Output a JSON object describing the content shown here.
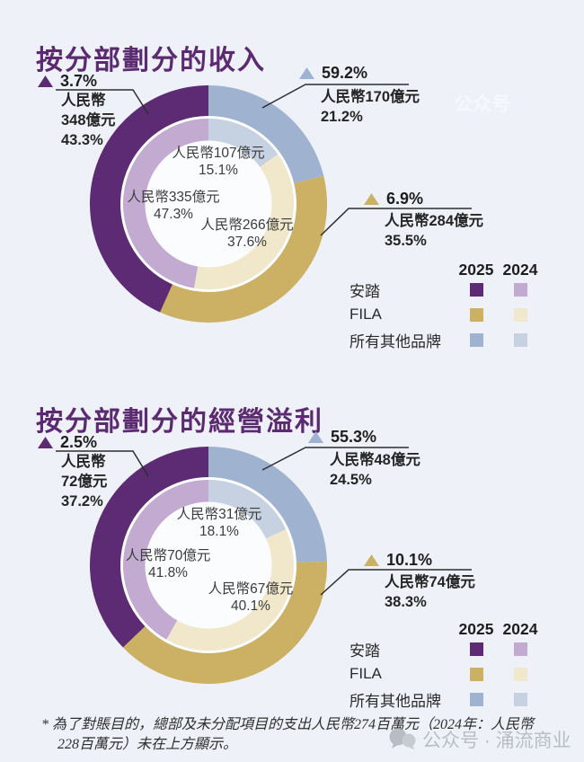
{
  "colors": {
    "anta_2025": "#5d2b74",
    "anta_2024": "#c3aad0",
    "fila_2025": "#ccb164",
    "fila_2024": "#f1e8cc",
    "other_2025": "#9fb2cf",
    "other_2024": "#c6d1e1",
    "title": "#5b2a70",
    "background": "#eef1f8"
  },
  "chart_data": [
    {
      "type": "pie",
      "subtype": "double-ring-donut",
      "title": "按分部劃分的收入",
      "unit": "人民幣億元",
      "categories": [
        "所有其他品牌",
        "FILA",
        "安踏"
      ],
      "series": [
        {
          "name": "2025",
          "ring": "outer",
          "values": [
            170,
            284,
            348
          ],
          "pct": [
            21.2,
            35.5,
            43.3
          ],
          "colors": [
            "#9fb2cf",
            "#ccb164",
            "#5d2b74"
          ]
        },
        {
          "name": "2024",
          "ring": "inner",
          "values": [
            107,
            266,
            335
          ],
          "pct": [
            15.1,
            37.6,
            47.3
          ],
          "colors": [
            "#c6d1e1",
            "#f1e8cc",
            "#c3aad0"
          ]
        }
      ],
      "yoy_growth_pct": {
        "安踏": 3.7,
        "FILA": 6.9,
        "所有其他品牌": 59.2
      },
      "legend_position": "right"
    },
    {
      "type": "pie",
      "subtype": "double-ring-donut",
      "title": "按分部劃分的經營溢利",
      "unit": "人民幣億元",
      "categories": [
        "所有其他品牌",
        "FILA",
        "安踏"
      ],
      "series": [
        {
          "name": "2025",
          "ring": "outer",
          "values": [
            48,
            74,
            72
          ],
          "pct": [
            24.5,
            38.3,
            37.2
          ],
          "colors": [
            "#9fb2cf",
            "#ccb164",
            "#5d2b74"
          ]
        },
        {
          "name": "2024",
          "ring": "inner",
          "values": [
            31,
            67,
            70
          ],
          "pct": [
            18.1,
            40.1,
            41.8
          ],
          "colors": [
            "#c6d1e1",
            "#f1e8cc",
            "#c3aad0"
          ]
        }
      ],
      "yoy_growth_pct": {
        "安踏": 2.5,
        "FILA": 10.1,
        "所有其他品牌": 55.3
      },
      "legend_position": "right"
    }
  ],
  "charts": [
    {
      "title": "按分部劃分的收入",
      "callouts": {
        "anta": {
          "pct": "3.7%",
          "lines": [
            "人民幣",
            "348億元",
            "43.3%"
          ]
        },
        "other": {
          "pct": "59.2%",
          "lines": [
            "人民幣170億元",
            "21.2%"
          ]
        },
        "fila": {
          "pct": "6.9%",
          "lines": [
            "人民幣284億元",
            "35.5%"
          ]
        }
      },
      "inner_labels": {
        "other": {
          "value": "人民幣107億元",
          "pct": "15.1%"
        },
        "anta": {
          "value": "人民幣335億元",
          "pct": "47.3%"
        },
        "fila": {
          "value": "人民幣266億元",
          "pct": "37.6%"
        }
      }
    },
    {
      "title": "按分部劃分的經營溢利",
      "callouts": {
        "anta": {
          "pct": "2.5%",
          "lines": [
            "人民幣",
            "72億元",
            "37.2%"
          ]
        },
        "other": {
          "pct": "55.3%",
          "lines": [
            "人民幣48億元",
            "24.5%"
          ]
        },
        "fila": {
          "pct": "10.1%",
          "lines": [
            "人民幣74億元",
            "38.3%"
          ]
        }
      },
      "inner_labels": {
        "other": {
          "value": "人民幣31億元",
          "pct": "18.1%"
        },
        "anta": {
          "value": "人民幣70億元",
          "pct": "41.8%"
        },
        "fila": {
          "value": "人民幣67億元",
          "pct": "40.1%"
        }
      }
    }
  ],
  "legend": {
    "col_2025": "2025",
    "col_2024": "2024",
    "rows": [
      {
        "label": "安踏"
      },
      {
        "label": "FILA"
      },
      {
        "label": "所有其他品牌"
      }
    ]
  },
  "footnote": "* 為了對賬目的，總部及未分配項目的支出人民幣274百萬元（2024年：人民幣228百萬元）未在上方顯示。",
  "watermark_bottom": "公众号 · 涌流商业",
  "watermark_top": "公众号"
}
